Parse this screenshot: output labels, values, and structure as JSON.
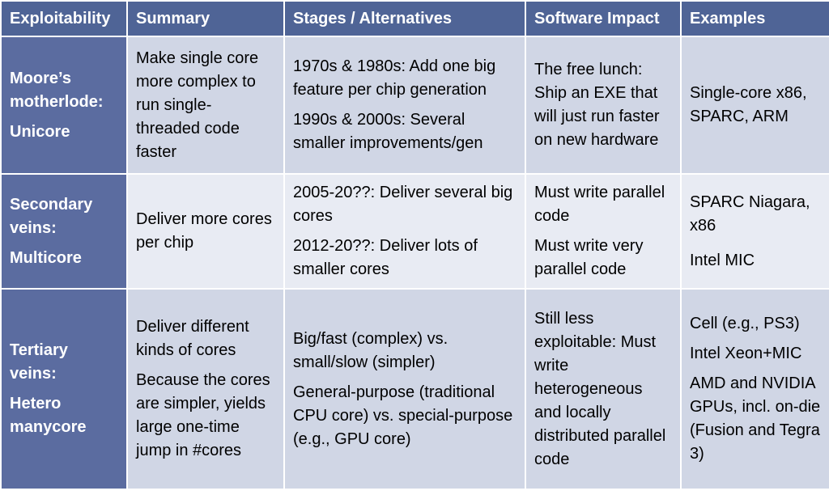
{
  "headers": [
    "Exploitability",
    "Summary",
    "Stages / Alternatives",
    "Software Impact",
    "Examples"
  ],
  "rows": [
    {
      "label": [
        "Moore’s motherlode:",
        "Unicore"
      ],
      "summary": [
        "Make single core more complex to run single-threaded code faster"
      ],
      "stages": [
        "1970s & 1980s: Add one big feature per chip generation",
        "1990s & 2000s: Several smaller improvements/gen"
      ],
      "impact": [
        "The free lunch: Ship an EXE that will just run faster on new hardware"
      ],
      "examples": [
        "Single-core x86, SPARC, ARM"
      ]
    },
    {
      "label": [
        "Secondary veins:",
        "Multicore"
      ],
      "summary": [
        "Deliver more cores per chip"
      ],
      "stages": [
        "2005-20??: Deliver several big cores",
        "2012-20??: Deliver lots of smaller cores"
      ],
      "impact": [
        "Must write parallel code",
        "Must write very parallel code"
      ],
      "examples": [
        "SPARC Niagara, x86",
        "Intel MIC"
      ]
    },
    {
      "label": [
        "Tertiary veins:",
        "Hetero manycore"
      ],
      "summary": [
        "Deliver different kinds of cores",
        "Because the cores are simpler, yields large one-time jump in #cores"
      ],
      "stages": [
        "Big/fast (complex) vs. small/slow (simpler)",
        "General-purpose (traditional CPU core) vs. special-purpose (e.g., GPU core)"
      ],
      "impact": [
        "Still less exploitable: Must write heterogeneous and locally distributed parallel code"
      ],
      "examples": [
        "Cell (e.g., PS3)",
        "Intel Xeon+MIC",
        "AMD and NVIDIA GPUs, incl. on-die (Fusion and Tegra 3)"
      ]
    }
  ]
}
